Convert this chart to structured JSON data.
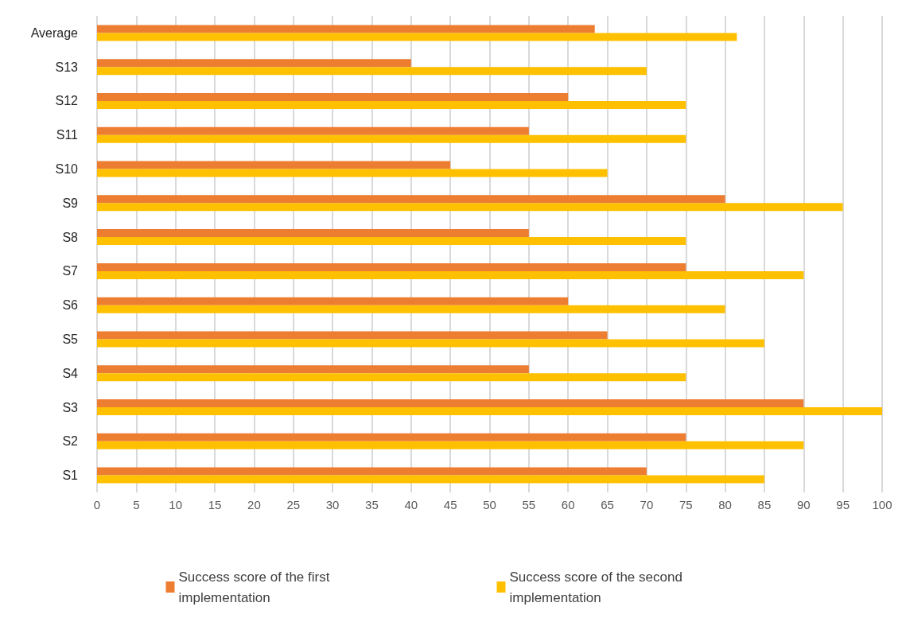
{
  "chart_data": {
    "type": "bar",
    "orientation": "horizontal",
    "categories": [
      "Average",
      "S13",
      "S12",
      "S11",
      "S10",
      "S9",
      "S8",
      "S7",
      "S6",
      "S5",
      "S4",
      "S3",
      "S2",
      "S1"
    ],
    "series": [
      {
        "name": "Success score of the first implementation",
        "color": "#ed7d31",
        "values": [
          63.4,
          40,
          60,
          55,
          45,
          80,
          55,
          75,
          60,
          65,
          55,
          90,
          75,
          70
        ]
      },
      {
        "name": "Success score of the second implementation",
        "color": "#ffc000",
        "values": [
          81.5,
          70,
          75,
          75,
          65,
          95,
          75,
          90,
          80,
          85,
          75,
          100,
          90,
          85
        ]
      }
    ],
    "xlim": [
      0,
      100
    ],
    "xticks": [
      0,
      5,
      10,
      15,
      20,
      25,
      30,
      35,
      40,
      45,
      50,
      55,
      60,
      65,
      70,
      75,
      80,
      85,
      90,
      95,
      100
    ],
    "grid": "x",
    "legend": "bottom"
  }
}
